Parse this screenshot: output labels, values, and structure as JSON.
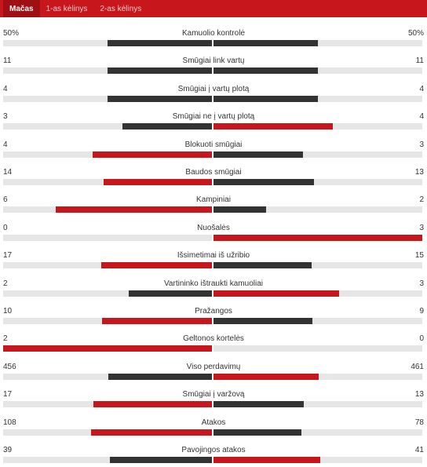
{
  "tabs": [
    {
      "label": "Mačas",
      "active": true
    },
    {
      "label": "1-as kėlinys",
      "active": false
    },
    {
      "label": "2-as kėlinys",
      "active": false
    }
  ],
  "colors": {
    "winner": "#c8161d",
    "other": "#333333",
    "track": "#e6e6e6"
  },
  "stats": [
    {
      "label": "Kamuolio kontrolė",
      "left": "50%",
      "right": "50%",
      "lval": 50,
      "rval": 50
    },
    {
      "label": "Smūgiai link vartų",
      "left": "11",
      "right": "11",
      "lval": 11,
      "rval": 11
    },
    {
      "label": "Smūgiai į vartų plotą",
      "left": "4",
      "right": "4",
      "lval": 4,
      "rval": 4
    },
    {
      "label": "Smūgiai ne į vartų plotą",
      "left": "3",
      "right": "4",
      "lval": 3,
      "rval": 4
    },
    {
      "label": "Blokuoti smūgiai",
      "left": "4",
      "right": "3",
      "lval": 4,
      "rval": 3
    },
    {
      "label": "Baudos smūgiai",
      "left": "14",
      "right": "13",
      "lval": 14,
      "rval": 13
    },
    {
      "label": "Kampiniai",
      "left": "6",
      "right": "2",
      "lval": 6,
      "rval": 2
    },
    {
      "label": "Nuošalės",
      "left": "0",
      "right": "3",
      "lval": 0,
      "rval": 3
    },
    {
      "label": "Išsimetimai iš užribio",
      "left": "17",
      "right": "15",
      "lval": 17,
      "rval": 15
    },
    {
      "label": "Vartininko ištraukti kamuoliai",
      "left": "2",
      "right": "3",
      "lval": 2,
      "rval": 3
    },
    {
      "label": "Pražangos",
      "left": "10",
      "right": "9",
      "lval": 10,
      "rval": 9
    },
    {
      "label": "Geltonos kortelės",
      "left": "2",
      "right": "0",
      "lval": 2,
      "rval": 0
    },
    {
      "label": "Viso perdavimų",
      "left": "456",
      "right": "461",
      "lval": 456,
      "rval": 461
    },
    {
      "label": "Smūgiai į varžovą",
      "left": "17",
      "right": "13",
      "lval": 17,
      "rval": 13
    },
    {
      "label": "Atakos",
      "left": "108",
      "right": "78",
      "lval": 108,
      "rval": 78
    },
    {
      "label": "Pavojingos atakos",
      "left": "39",
      "right": "41",
      "lval": 39,
      "rval": 41
    }
  ]
}
